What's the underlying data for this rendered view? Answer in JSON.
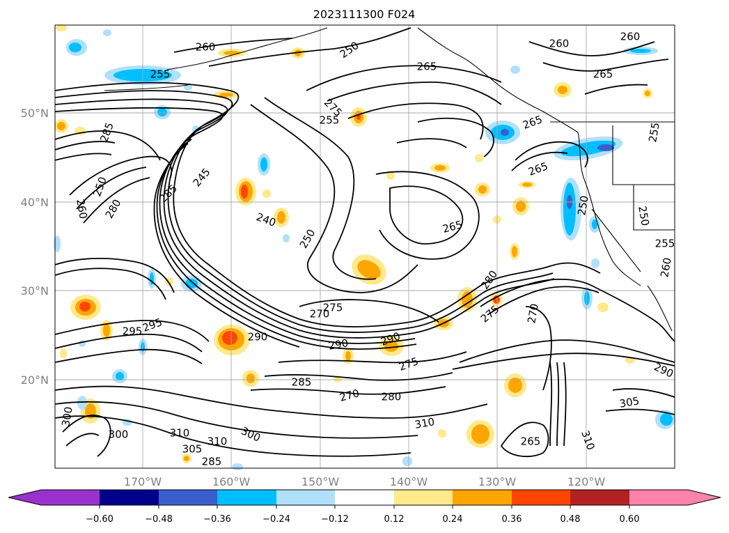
{
  "title": "2023111300 F024",
  "lat_labels": [
    "50°N",
    "40°N",
    "30°N",
    "20°N"
  ],
  "lon_labels": [
    "170°W",
    "160°W",
    "150°W",
    "140°W",
    "130°W",
    "120°W"
  ],
  "colorbar": {
    "ticks": [
      "−0.60",
      "−0.48",
      "−0.36",
      "−0.24",
      "−0.12",
      "0.12",
      "0.24",
      "0.36",
      "0.48",
      "0.60"
    ],
    "colors": [
      "#9932cc",
      "#00008b",
      "#3a5fcd",
      "#00bfff",
      "#b0e0fa",
      "#ffffff",
      "#ffe98a",
      "#ffa500",
      "#ff4500",
      "#b22222",
      "#ff82ab"
    ]
  },
  "contour_labels": [
    "260",
    "250",
    "265",
    "260",
    "260",
    "265",
    "255",
    "255",
    "275",
    "255",
    "265",
    "285",
    "265",
    "260",
    "250",
    "280",
    "285",
    "245",
    "240",
    "250",
    "265",
    "280",
    "275",
    "270",
    "290",
    "290",
    "290",
    "295",
    "295",
    "275",
    "285",
    "270",
    "280",
    "300",
    "300",
    "310",
    "305",
    "310",
    "285",
    "300",
    "310",
    "265",
    "275",
    "305",
    "290",
    "250",
    "250",
    "255",
    "260",
    "270",
    "310"
  ]
}
